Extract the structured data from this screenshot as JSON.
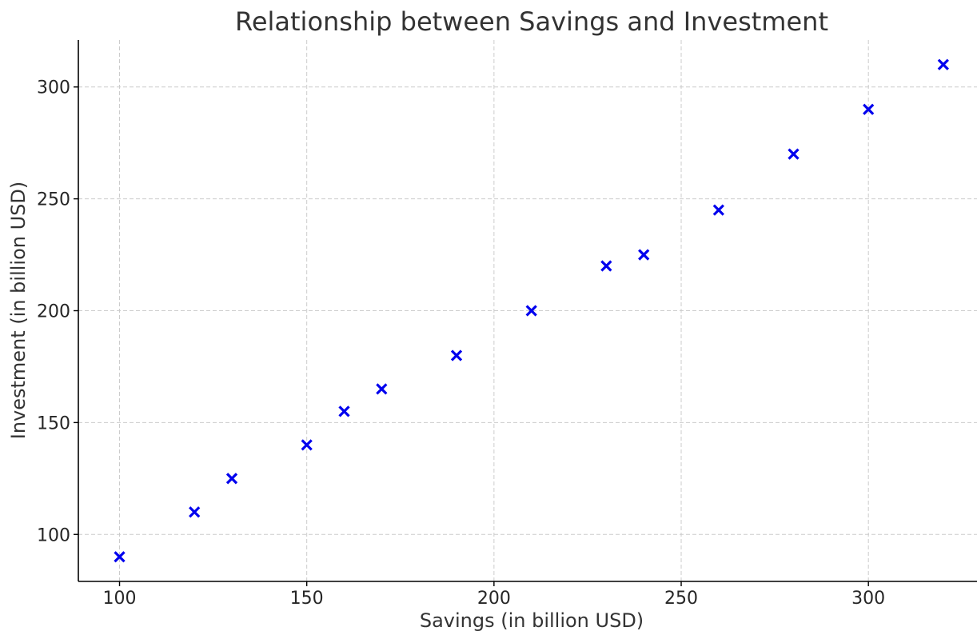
{
  "chart_data": {
    "type": "scatter",
    "title": "Relationship between Savings and Investment",
    "xlabel": "Savings (in billion USD)",
    "ylabel": "Investment (in billion USD)",
    "xlim": [
      89,
      329
    ],
    "ylim": [
      79,
      321
    ],
    "xticks": [
      100,
      150,
      200,
      250,
      300
    ],
    "yticks": [
      100,
      150,
      200,
      250,
      300
    ],
    "grid": true,
    "marker": "x",
    "marker_color": "#0000ee",
    "x": [
      100,
      120,
      130,
      150,
      160,
      170,
      190,
      210,
      230,
      240,
      260,
      280,
      300,
      320
    ],
    "y": [
      90,
      110,
      125,
      140,
      155,
      165,
      180,
      200,
      220,
      225,
      245,
      270,
      290,
      310
    ]
  }
}
